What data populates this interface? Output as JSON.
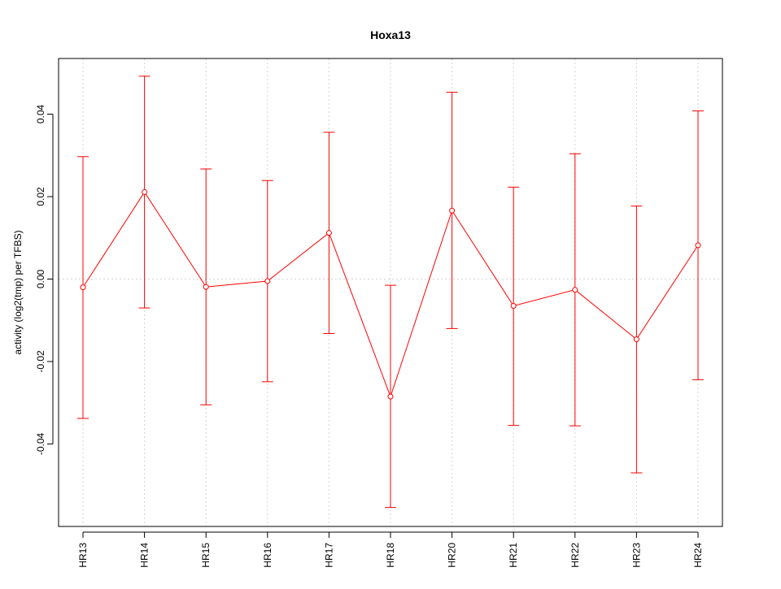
{
  "chart_data": {
    "type": "line",
    "title": "Hoxa13",
    "xlabel": "",
    "ylabel": "activity (log2(tmp) per TFBS)",
    "categories": [
      "HR13",
      "HR14",
      "HR15",
      "HR16",
      "HR17",
      "HR18",
      "HR20",
      "HR21",
      "HR22",
      "HR23",
      "HR24"
    ],
    "series": [
      {
        "values": [
          -0.002,
          0.0211,
          -0.0019,
          -0.0005,
          0.0112,
          -0.0285,
          0.0166,
          -0.0065,
          -0.0026,
          -0.0146,
          0.0082
        ],
        "upper": [
          0.0297,
          0.0492,
          0.0267,
          0.0239,
          0.0356,
          -0.0015,
          0.0453,
          0.0223,
          0.0304,
          0.0177,
          0.0408
        ],
        "lower": [
          -0.0338,
          -0.007,
          -0.0305,
          -0.0249,
          -0.0132,
          -0.0554,
          -0.012,
          -0.0355,
          -0.0356,
          -0.047,
          -0.0244
        ]
      }
    ],
    "yticks": [
      "-0.04",
      "-0.02",
      "0.00",
      "0.02",
      "0.04"
    ],
    "ylim": [
      -0.06,
      0.0535
    ],
    "grid": true,
    "colors": {
      "series": "#ff0000",
      "grid": "#d3d3d3",
      "axis": "#000000"
    }
  }
}
